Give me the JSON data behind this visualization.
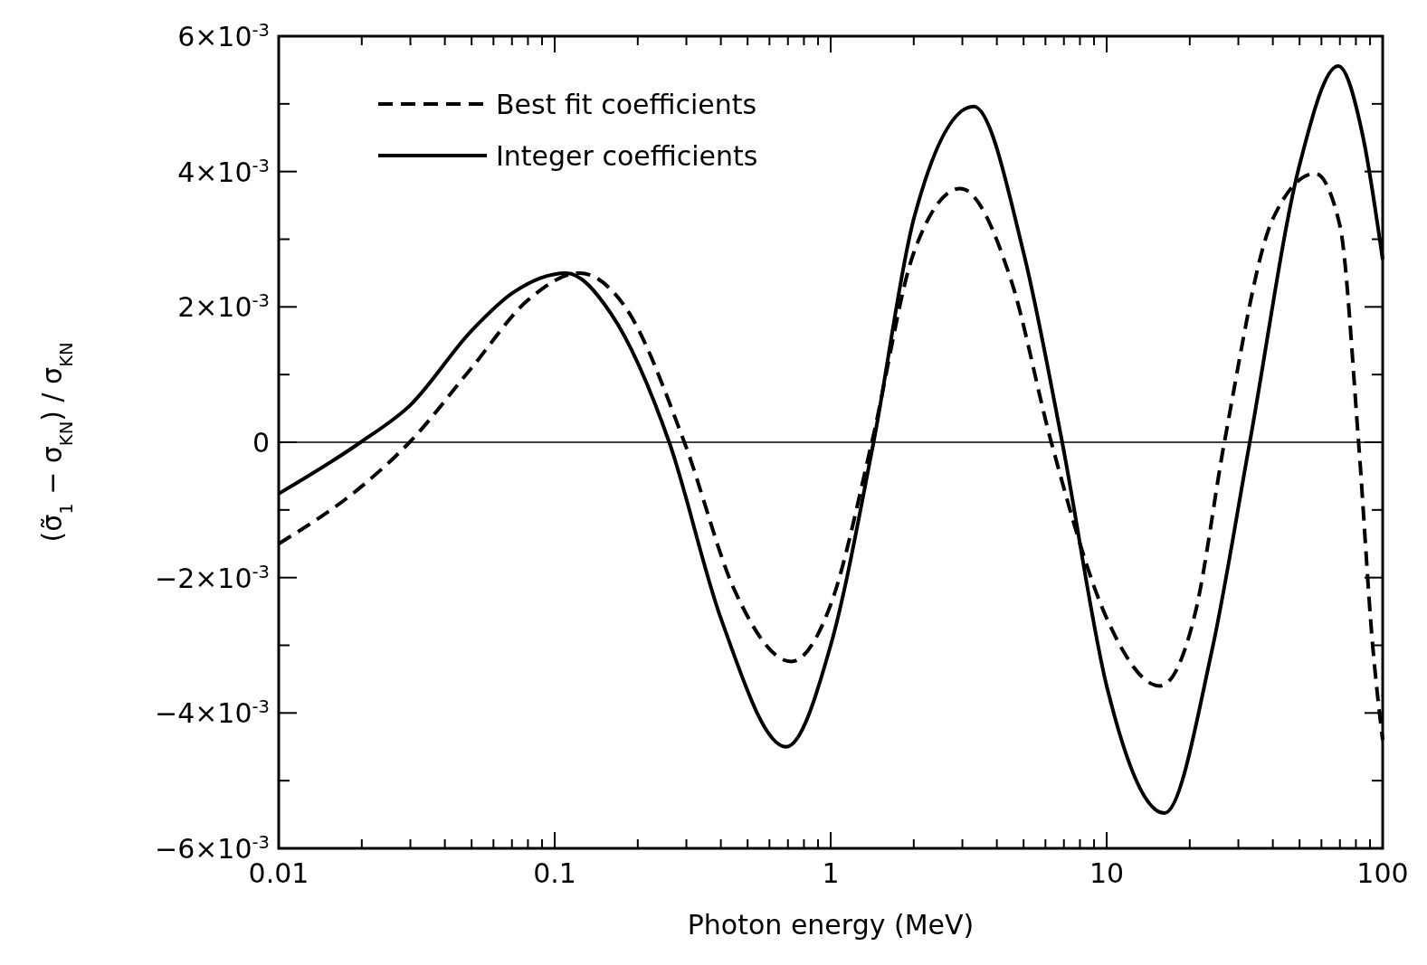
{
  "chart_data": {
    "type": "line",
    "xlabel": "Photon energy (MeV)",
    "ylabel": "(σ̃$_{1}$ − σ$_{KN}$) / σ$_{KN}$",
    "log": "x",
    "xlim": [
      0.01,
      100
    ],
    "ylim": [
      -0.006,
      0.006
    ],
    "xticks": [
      {
        "value": 0.01,
        "label": "0.01"
      },
      {
        "value": 0.02,
        "label": null
      },
      {
        "value": 0.03,
        "label": null
      },
      {
        "value": 0.04,
        "label": null
      },
      {
        "value": 0.05,
        "label": null
      },
      {
        "value": 0.06,
        "label": null
      },
      {
        "value": 0.07,
        "label": null
      },
      {
        "value": 0.08,
        "label": null
      },
      {
        "value": 0.09,
        "label": null
      },
      {
        "value": 0.1,
        "label": "0.1"
      },
      {
        "value": 0.2,
        "label": null
      },
      {
        "value": 0.3,
        "label": null
      },
      {
        "value": 0.4,
        "label": null
      },
      {
        "value": 0.5,
        "label": null
      },
      {
        "value": 0.6,
        "label": null
      },
      {
        "value": 0.7,
        "label": null
      },
      {
        "value": 0.8,
        "label": null
      },
      {
        "value": 0.9,
        "label": null
      },
      1,
      {
        "value": 2,
        "label": null
      },
      {
        "value": 3,
        "label": null
      },
      {
        "value": 4,
        "label": null
      },
      {
        "value": 5,
        "label": null
      },
      {
        "value": 6,
        "label": null
      },
      {
        "value": 7,
        "label": null
      },
      {
        "value": 8,
        "label": null
      },
      {
        "value": 9,
        "label": null
      },
      10,
      {
        "value": 20,
        "label": null
      },
      {
        "value": 30,
        "label": null
      },
      {
        "value": 40,
        "label": null
      },
      {
        "value": 50,
        "label": null
      },
      {
        "value": 60,
        "label": null
      },
      {
        "value": 70,
        "label": null
      },
      {
        "value": 80,
        "label": null
      },
      {
        "value": 90,
        "label": null
      },
      100
    ],
    "yticks": [
      {
        "value": -0.006,
        "label": "−6×10$^{-3}$"
      },
      {
        "value": -0.005,
        "label": null
      },
      {
        "value": -0.004,
        "label": "−4×10$^{-3}$"
      },
      {
        "value": -0.003,
        "label": null
      },
      {
        "value": -0.002,
        "label": "−2×10$^{-3}$"
      },
      {
        "value": -0.001,
        "label": null
      },
      0,
      {
        "value": 0.001,
        "label": null
      },
      {
        "value": 0.002,
        "label": "2×10$^{-3}$"
      },
      {
        "value": 0.003,
        "label": null
      },
      {
        "value": 0.004,
        "label": "4×10$^{-3}$"
      },
      {
        "value": 0.005,
        "label": null
      },
      {
        "value": 0.006,
        "label": "6×10$^{-3}$"
      }
    ],
    "ref_lines": [
      {
        "axis": "y",
        "value": 0,
        "color": "#000000"
      }
    ],
    "legend": "top left",
    "marker": "none",
    "grid": false,
    "series": [
      {
        "name": "Best fit coefficients",
        "color": "#000000",
        "line_style": "dashed",
        "x": [
          0.01,
          0.02,
          0.0298,
          0.05,
          0.08,
          0.123,
          0.18,
          0.295,
          0.45,
          0.72,
          1.0,
          1.41,
          2.0,
          2.95,
          4.5,
          6.3,
          10,
          15.6,
          21,
          26.7,
          40,
          57,
          70,
          81.8,
          92,
          100
        ],
        "values": [
          -0.0015,
          -0.00065,
          0,
          0.0011,
          0.0021,
          0.0025,
          0.002,
          0,
          -0.0022,
          -0.00324,
          -0.0024,
          0,
          0.0028,
          0.00375,
          0.0024,
          0,
          -0.0026,
          -0.0036,
          -0.0025,
          0,
          0.0033,
          0.00397,
          0.0032,
          0,
          -0.003,
          -0.0044
        ]
      },
      {
        "name": "Integer coefficients",
        "color": "#000000",
        "line_style": "solid",
        "x": [
          0.01,
          0.0198,
          0.03,
          0.05,
          0.07,
          0.11,
          0.16,
          0.26,
          0.4,
          0.69,
          1.0,
          1.43,
          2.0,
          3.3,
          5.0,
          6.9,
          10,
          16.2,
          24,
          33,
          50,
          69,
          85,
          100
        ],
        "values": [
          -0.00076,
          0,
          0.00055,
          0.00165,
          0.0022,
          0.0025,
          0.0019,
          0,
          -0.0026,
          -0.0045,
          -0.003,
          0,
          0.0033,
          0.00496,
          0.0028,
          0,
          -0.0036,
          -0.00548,
          -0.0031,
          0,
          0.0041,
          0.00556,
          0.0045,
          0.0027
        ]
      }
    ]
  }
}
